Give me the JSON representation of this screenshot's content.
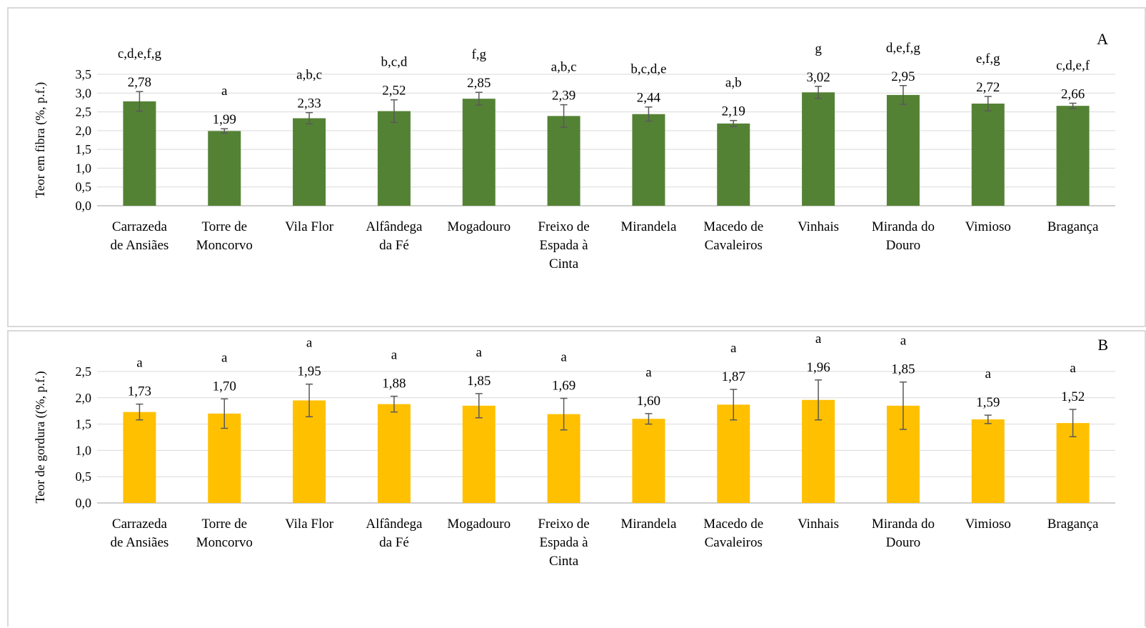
{
  "chart_data": [
    {
      "id": "A",
      "type": "bar",
      "panel_letter": "A",
      "ylabel": "Teor em fibra (%, p.f.)",
      "ylim": [
        0,
        3.5
      ],
      "yticks": [
        "0,0",
        "0,5",
        "1,0",
        "1,5",
        "2,0",
        "2,5",
        "3,0",
        "3,5"
      ],
      "grid": true,
      "bar_color": "#548235",
      "categories": [
        [
          "Carrazeda",
          "de Ansiães"
        ],
        [
          "Torre de",
          "Moncorvo"
        ],
        [
          "Vila Flor"
        ],
        [
          "Alfândega",
          "da Fé"
        ],
        [
          "Mogadouro"
        ],
        [
          "Freixo de",
          "Espada à",
          "Cinta"
        ],
        [
          "Mirandela"
        ],
        [
          "Macedo de",
          "Cavaleiros"
        ],
        [
          "Vinhais"
        ],
        [
          "Miranda do",
          "Douro"
        ],
        [
          "Vimioso"
        ],
        [
          "Bragança"
        ]
      ],
      "values": [
        2.78,
        1.99,
        2.33,
        2.52,
        2.85,
        2.39,
        2.44,
        2.19,
        3.02,
        2.95,
        2.72,
        2.66
      ],
      "value_labels": [
        "2,78",
        "1,99",
        "2,33",
        "2,52",
        "2,85",
        "2,39",
        "2,44",
        "2,19",
        "3,02",
        "2,95",
        "2,72",
        "2,66"
      ],
      "errors": [
        0.26,
        0.06,
        0.15,
        0.3,
        0.17,
        0.3,
        0.19,
        0.08,
        0.16,
        0.25,
        0.19,
        0.07
      ],
      "letters": [
        "c,d,e,f,g",
        "a",
        "a,b,c",
        "b,c,d",
        "f,g",
        "a,b,c",
        "b,c,d,e",
        "a,b",
        "g",
        "d,e,f,g",
        "e,f,g",
        "c,d,e,f"
      ]
    },
    {
      "id": "B",
      "type": "bar",
      "panel_letter": "B",
      "ylabel": "Teor de gordura ((%, p.f.)",
      "ylim": [
        0,
        2.5
      ],
      "yticks": [
        "0,0",
        "0,5",
        "1,0",
        "1,5",
        "2,0",
        "2,5"
      ],
      "grid": true,
      "bar_color": "#FFC000",
      "categories": [
        [
          "Carrazeda",
          "de Ansiães"
        ],
        [
          "Torre de",
          "Moncorvo"
        ],
        [
          "Vila Flor"
        ],
        [
          "Alfândega",
          "da Fé"
        ],
        [
          "Mogadouro"
        ],
        [
          "Freixo de",
          "Espada à",
          "Cinta"
        ],
        [
          "Mirandela"
        ],
        [
          "Macedo de",
          "Cavaleiros"
        ],
        [
          "Vinhais"
        ],
        [
          "Miranda do",
          "Douro"
        ],
        [
          "Vimioso"
        ],
        [
          "Bragança"
        ]
      ],
      "values": [
        1.73,
        1.7,
        1.95,
        1.88,
        1.85,
        1.69,
        1.6,
        1.87,
        1.96,
        1.85,
        1.59,
        1.52
      ],
      "value_labels": [
        "1,73",
        "1,70",
        "1,95",
        "1,88",
        "1,85",
        "1,69",
        "1,60",
        "1,87",
        "1,96",
        "1,85",
        "1,59",
        "1,52"
      ],
      "errors": [
        0.15,
        0.28,
        0.31,
        0.15,
        0.23,
        0.3,
        0.1,
        0.29,
        0.38,
        0.45,
        0.08,
        0.26
      ],
      "letters": [
        "a",
        "a",
        "a",
        "a",
        "a",
        "a",
        "a",
        "a",
        "a",
        "a",
        "a",
        "a"
      ]
    }
  ]
}
